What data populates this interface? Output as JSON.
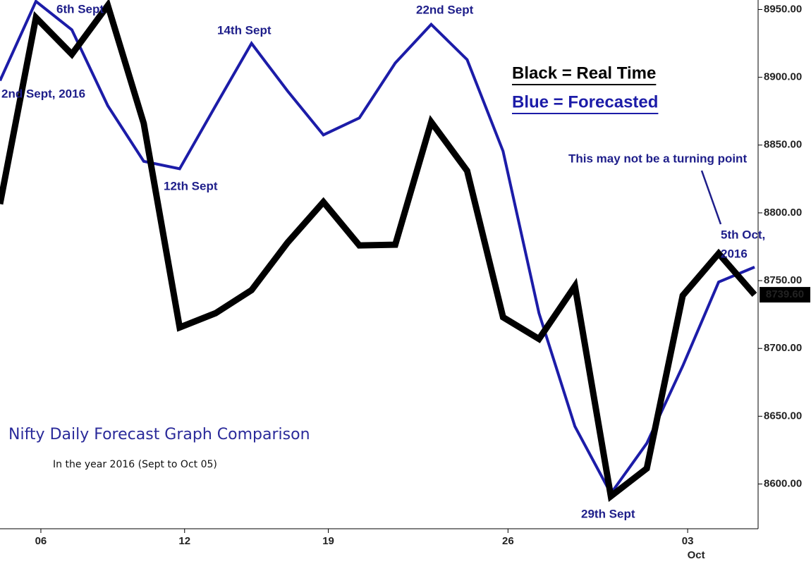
{
  "chart_data": {
    "type": "line",
    "title": "Nifty Daily Forecast Graph Comparison",
    "subtitle": "In the year 2016 (Sept to Oct 05)",
    "categories": [
      null,
      "06",
      null,
      null,
      null,
      "12",
      null,
      null,
      null,
      "19",
      null,
      null,
      null,
      null,
      "26",
      null,
      null,
      null,
      null,
      "03",
      null,
      null
    ],
    "month_label": "Oct",
    "series": [
      {
        "name": "Black = Real Time",
        "color": "#000000",
        "values": [
          8806.5,
          8944,
          8917,
          8953,
          8866,
          8715.5,
          8726,
          8743,
          8778,
          8808,
          8776,
          8776.5,
          8867,
          8831,
          8723,
          8707,
          8746,
          8591,
          8611.5,
          8739,
          8770,
          8739.6
        ]
      },
      {
        "name": "Blue = Forecasted",
        "color": "#1c1ca8",
        "values": [
          8897.5,
          8956,
          8935,
          8879,
          8838,
          8832.5,
          8879,
          8925,
          8890,
          8857.5,
          8870,
          8910.5,
          8939,
          8913,
          8845.5,
          8726,
          8642.5,
          8593,
          8630,
          8687,
          8749,
          8760
        ]
      }
    ],
    "ylim": [
      8567,
      8957
    ],
    "yticks": [
      {
        "value": 8600,
        "label": "8600.00"
      },
      {
        "value": 8650,
        "label": "8650.00"
      },
      {
        "value": 8700,
        "label": "8700.00"
      },
      {
        "value": 8750,
        "label": "8750.00"
      },
      {
        "value": 8800,
        "label": "8800.00"
      },
      {
        "value": 8850,
        "label": "8850.00"
      },
      {
        "value": 8900,
        "label": "8900.00"
      },
      {
        "value": 8950,
        "label": "8950.00"
      }
    ],
    "last_value": {
      "value": 8739.6,
      "label": "8739.60"
    },
    "annotations": [
      "2nd Sept, 2016",
      "6th Sept",
      "12th Sept",
      "14th Sept",
      "22nd Sept",
      "29th Sept",
      "5th Oct,",
      "2016",
      "This may not be a turning point"
    ]
  }
}
